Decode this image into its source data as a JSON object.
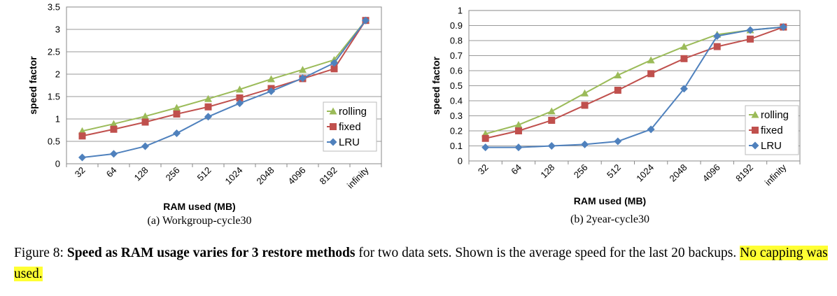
{
  "chart_data": [
    {
      "type": "line",
      "subcaption": "(a) Workgroup-cycle30",
      "xlabel": "RAM used (MB)",
      "ylabel": "speed factor",
      "categories": [
        "32",
        "64",
        "128",
        "256",
        "512",
        "1024",
        "2048",
        "4096",
        "8192",
        "infinity"
      ],
      "ylim": [
        0,
        3.5
      ],
      "yticks": [
        "0",
        "0.5",
        "1",
        "1.5",
        "2",
        "2.5",
        "3",
        "3.5"
      ],
      "grid": true,
      "legend_position": "right",
      "series": [
        {
          "name": "rolling",
          "marker": "triangle",
          "color": "#9bbb59",
          "values": [
            0.73,
            0.89,
            1.06,
            1.25,
            1.45,
            1.66,
            1.89,
            2.1,
            2.32,
            3.2
          ]
        },
        {
          "name": "fixed",
          "marker": "square",
          "color": "#c0504d",
          "values": [
            0.62,
            0.77,
            0.93,
            1.11,
            1.27,
            1.47,
            1.68,
            1.9,
            2.12,
            3.2
          ]
        },
        {
          "name": "LRU",
          "marker": "diamond",
          "color": "#4f81bd",
          "values": [
            0.14,
            0.22,
            0.39,
            0.68,
            1.05,
            1.35,
            1.62,
            1.91,
            2.25,
            3.2
          ]
        }
      ]
    },
    {
      "type": "line",
      "subcaption": "(b) 2year-cycle30",
      "xlabel": "RAM used (MB)",
      "ylabel": "speed factor",
      "categories": [
        "32",
        "64",
        "128",
        "256",
        "512",
        "1024",
        "2048",
        "4096",
        "8192",
        "infinity"
      ],
      "ylim": [
        0,
        1
      ],
      "yticks": [
        "0",
        "0.1",
        "0.2",
        "0.3",
        "0.4",
        "0.5",
        "0.6",
        "0.7",
        "0.8",
        "0.9",
        "1"
      ],
      "grid": true,
      "legend_position": "right",
      "series": [
        {
          "name": "rolling",
          "marker": "triangle",
          "color": "#9bbb59",
          "values": [
            0.18,
            0.24,
            0.33,
            0.45,
            0.57,
            0.67,
            0.76,
            0.84,
            0.87,
            0.89
          ]
        },
        {
          "name": "fixed",
          "marker": "square",
          "color": "#c0504d",
          "values": [
            0.15,
            0.2,
            0.27,
            0.37,
            0.47,
            0.58,
            0.68,
            0.76,
            0.81,
            0.89
          ]
        },
        {
          "name": "LRU",
          "marker": "diamond",
          "color": "#4f81bd",
          "values": [
            0.09,
            0.09,
            0.1,
            0.11,
            0.13,
            0.21,
            0.48,
            0.83,
            0.87,
            0.89
          ]
        }
      ]
    }
  ],
  "caption": {
    "prefix": "Figure 8: ",
    "bold": "Speed as RAM usage varies for 3 restore methods",
    "text": " for two data sets. Shown is the average speed for the last 20 backups. ",
    "highlighted": "No capping was used."
  }
}
